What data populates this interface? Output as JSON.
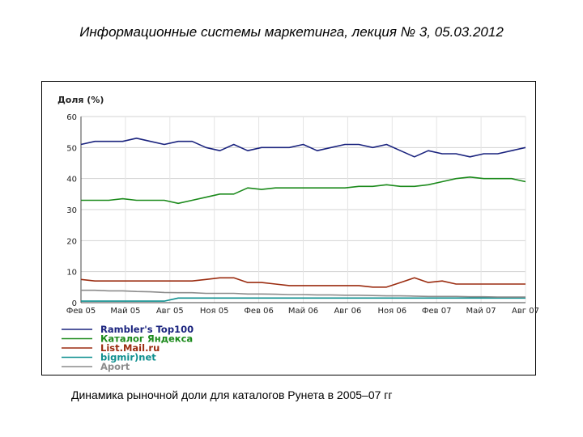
{
  "slide": {
    "title": "Информационные системы маркетинга, лекция № 3, 05.03.2012",
    "caption": "Динамика рыночной доли для каталогов Рунета в 2005–07 гг"
  },
  "chart_data": {
    "type": "line",
    "ylabel": "Доля (%)",
    "ylim": [
      0,
      60
    ],
    "yticks": [
      0,
      10,
      20,
      30,
      40,
      50,
      60
    ],
    "grid": true,
    "legend_position": "bottom-left",
    "x_tick_labels": [
      "Фев 05",
      "Май 05",
      "Авг 05",
      "Ноя 05",
      "Фев 06",
      "Май 06",
      "Авг 06",
      "Ноя 06",
      "Фев 07",
      "Май 07",
      "Авг 07"
    ],
    "series": [
      {
        "name": "Rambler's Top100",
        "color": "#1a237e",
        "values": [
          51,
          52,
          52,
          52,
          53,
          52,
          51,
          52,
          52,
          50,
          49,
          51,
          49,
          50,
          50,
          50,
          51,
          49,
          50,
          51,
          51,
          50,
          51,
          49,
          47,
          49,
          48,
          48,
          47,
          48,
          48,
          49,
          50
        ]
      },
      {
        "name": "Каталог Яндекса",
        "color": "#1b8a1b",
        "values": [
          33,
          33,
          33,
          33.5,
          33,
          33,
          33,
          32,
          33,
          34,
          35,
          35,
          37,
          36.5,
          37,
          37,
          37,
          37,
          37,
          37,
          37.5,
          37.5,
          38,
          37.5,
          37.5,
          38,
          39,
          40,
          40.5,
          40,
          40,
          40,
          39
        ]
      },
      {
        "name": "List.Mail.ru",
        "color": "#9b2c10",
        "values": [
          7.5,
          7,
          7,
          7,
          7,
          7,
          7,
          7,
          7,
          7.5,
          8,
          8,
          6.5,
          6.5,
          6,
          5.5,
          5.5,
          5.5,
          5.5,
          5.5,
          5.5,
          5,
          5,
          6.5,
          8,
          6.5,
          7,
          6,
          6,
          6,
          6,
          6,
          6
        ]
      },
      {
        "name": "bigmir)net",
        "color": "#0f8f8f",
        "values": [
          0.5,
          0.5,
          0.5,
          0.5,
          0.5,
          0.5,
          0.5,
          1.5,
          1.5,
          1.5,
          1.5,
          1.5,
          1.5,
          1.5,
          1.5,
          1.5,
          1.5,
          1.5,
          1.5,
          1.5,
          1.5,
          1.5,
          1.5,
          1.5,
          1.5,
          1.5,
          1.5,
          1.5,
          1.5,
          1.5,
          1.5,
          1.5,
          1.5
        ]
      },
      {
        "name": "Aport",
        "color": "#8c8c8c",
        "values": [
          4,
          4,
          3.8,
          3.8,
          3.6,
          3.5,
          3.3,
          3.2,
          3.2,
          3,
          3,
          3,
          2.8,
          2.8,
          2.7,
          2.6,
          2.6,
          2.5,
          2.5,
          2.4,
          2.4,
          2.3,
          2.2,
          2.2,
          2.1,
          2,
          2,
          2,
          1.9,
          1.9,
          1.8,
          1.8,
          1.8
        ]
      }
    ]
  }
}
